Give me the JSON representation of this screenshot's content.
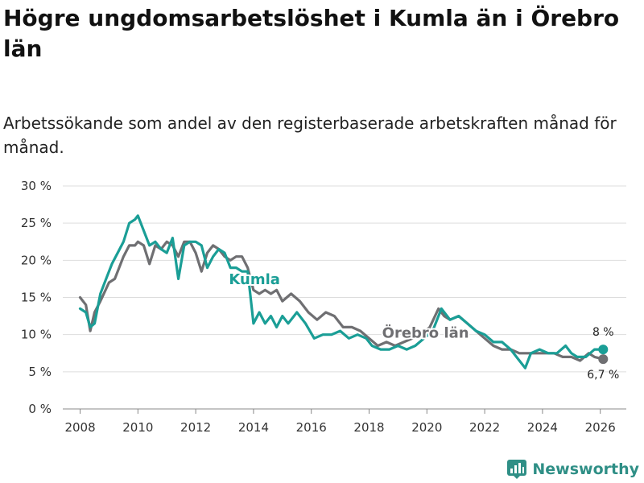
{
  "title": "Högre ungdomsarbetslöshet i Kumla än i Örebro län",
  "subtitle": "Arbetssökande som andel av den registerbaserade arbetskraften månad för månad.",
  "brand": {
    "name": "Newsworthy",
    "icon": "bar-chart-logo-icon"
  },
  "colors": {
    "kumla": "#1a9e96",
    "orebro": "#6f6f72",
    "grid": "#dddddd"
  },
  "chart_data": {
    "type": "line",
    "title": "Högre ungdomsarbetslöshet i Kumla än i Örebro län",
    "xlabel": "",
    "ylabel": "",
    "xlim": [
      2007.4,
      2026.9
    ],
    "ylim": [
      0,
      30
    ],
    "yticks": [
      0,
      5,
      10,
      15,
      20,
      25,
      30
    ],
    "ytick_labels": [
      "0 %",
      "5 %",
      "10 %",
      "15 %",
      "20 %",
      "25 %",
      "30 %"
    ],
    "xticks": [
      2008,
      2010,
      2012,
      2014,
      2016,
      2018,
      2020,
      2022,
      2024,
      2026
    ],
    "xtick_labels": [
      "2008",
      "2010",
      "2012",
      "2014",
      "2016",
      "2018",
      "2020",
      "2022",
      "2024",
      "2026"
    ],
    "grid": true,
    "series": [
      {
        "name": "Örebro län",
        "label": "Örebro län",
        "end_label": "6,7 %",
        "x": [
          2008.0,
          2008.2,
          2008.35,
          2008.5,
          2008.7,
          2009.0,
          2009.2,
          2009.5,
          2009.7,
          2009.9,
          2010.0,
          2010.2,
          2010.4,
          2010.6,
          2010.8,
          2011.0,
          2011.2,
          2011.4,
          2011.6,
          2011.8,
          2012.0,
          2012.2,
          2012.4,
          2012.6,
          2012.8,
          2013.0,
          2013.2,
          2013.4,
          2013.6,
          2013.8,
          2014.0,
          2014.2,
          2014.4,
          2014.6,
          2014.8,
          2015.0,
          2015.3,
          2015.6,
          2015.9,
          2016.2,
          2016.5,
          2016.8,
          2017.1,
          2017.4,
          2017.7,
          2018.0,
          2018.3,
          2018.6,
          2018.9,
          2019.2,
          2019.5,
          2019.8,
          2020.1,
          2020.4,
          2020.6,
          2020.8,
          2021.1,
          2021.4,
          2021.7,
          2022.0,
          2022.3,
          2022.6,
          2022.9,
          2023.2,
          2023.5,
          2023.8,
          2024.1,
          2024.4,
          2024.7,
          2025.0,
          2025.3,
          2025.6,
          2025.8,
          2026.1
        ],
        "values": [
          15.0,
          14.0,
          10.5,
          13.0,
          14.5,
          17.0,
          17.5,
          20.5,
          22.0,
          22.0,
          22.5,
          22.0,
          19.5,
          22.0,
          21.5,
          22.5,
          22.0,
          20.5,
          22.5,
          22.5,
          21.0,
          18.5,
          21.0,
          22.0,
          21.5,
          20.5,
          20.0,
          20.5,
          20.5,
          19.0,
          16.0,
          15.5,
          16.0,
          15.5,
          16.0,
          14.5,
          15.5,
          14.5,
          13.0,
          12.0,
          13.0,
          12.5,
          11.0,
          11.0,
          10.5,
          9.5,
          8.5,
          9.0,
          8.5,
          9.0,
          9.5,
          10.0,
          11.0,
          13.5,
          12.5,
          12.0,
          12.5,
          11.5,
          10.5,
          9.5,
          8.5,
          8.0,
          8.0,
          7.5,
          7.5,
          7.5,
          7.5,
          7.5,
          7.0,
          7.0,
          6.5,
          7.5,
          7.0,
          6.7
        ]
      },
      {
        "name": "Kumla",
        "label": "Kumla",
        "end_label": "8 %",
        "x": [
          2008.0,
          2008.2,
          2008.35,
          2008.5,
          2008.7,
          2008.9,
          2009.1,
          2009.3,
          2009.5,
          2009.7,
          2009.9,
          2010.0,
          2010.2,
          2010.4,
          2010.6,
          2010.8,
          2011.0,
          2011.2,
          2011.4,
          2011.6,
          2011.8,
          2012.0,
          2012.2,
          2012.4,
          2012.6,
          2012.8,
          2013.0,
          2013.2,
          2013.4,
          2013.6,
          2013.8,
          2014.0,
          2014.2,
          2014.4,
          2014.6,
          2014.8,
          2015.0,
          2015.2,
          2015.5,
          2015.8,
          2016.1,
          2016.4,
          2016.7,
          2017.0,
          2017.3,
          2017.6,
          2017.9,
          2018.1,
          2018.4,
          2018.7,
          2019.0,
          2019.3,
          2019.6,
          2019.9,
          2020.2,
          2020.5,
          2020.8,
          2021.1,
          2021.4,
          2021.7,
          2022.0,
          2022.3,
          2022.6,
          2022.9,
          2023.2,
          2023.4,
          2023.6,
          2023.9,
          2024.2,
          2024.5,
          2024.8,
          2025.0,
          2025.2,
          2025.5,
          2025.8,
          2026.1
        ],
        "values": [
          13.5,
          13.0,
          11.0,
          11.5,
          15.5,
          17.5,
          19.5,
          21.0,
          22.5,
          25.0,
          25.5,
          26.0,
          24.0,
          22.0,
          22.5,
          21.5,
          21.0,
          23.0,
          17.5,
          22.0,
          22.5,
          22.5,
          22.0,
          19.0,
          20.5,
          21.5,
          21.0,
          19.0,
          19.0,
          18.5,
          18.5,
          11.5,
          13.0,
          11.5,
          12.5,
          11.0,
          12.5,
          11.5,
          13.0,
          11.5,
          9.5,
          10.0,
          10.0,
          10.5,
          9.5,
          10.0,
          9.5,
          8.5,
          8.0,
          8.0,
          8.5,
          8.0,
          8.5,
          9.5,
          10.5,
          13.5,
          12.0,
          12.5,
          11.5,
          10.5,
          10.0,
          9.0,
          9.0,
          8.0,
          6.5,
          5.5,
          7.5,
          8.0,
          7.5,
          7.5,
          8.5,
          7.5,
          7.0,
          7.0,
          8.0,
          8.0
        ]
      }
    ]
  }
}
